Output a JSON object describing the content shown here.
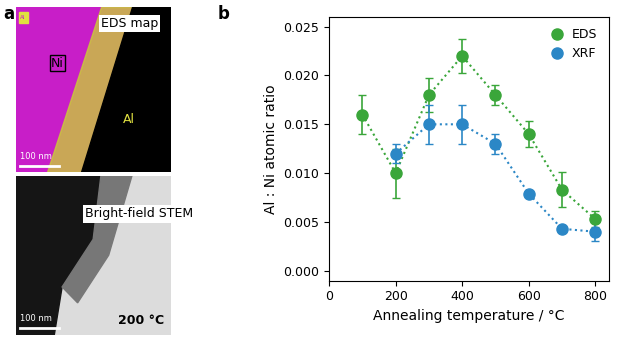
{
  "chart_data": {
    "type": "scatter",
    "x_label": "Annealing temperature / °C",
    "y_label": "Al : Ni atomic ratio",
    "x": [
      100,
      200,
      300,
      400,
      500,
      600,
      700,
      800
    ],
    "series": [
      {
        "name": "EDS",
        "color": "#3aa63a",
        "marker": "o",
        "line_style": "dotted",
        "values": [
          0.016,
          0.01,
          0.018,
          0.022,
          0.018,
          0.014,
          0.0083,
          0.0053
        ],
        "errors": [
          0.002,
          0.0025,
          0.0017,
          0.0017,
          0.001,
          0.0013,
          0.0018,
          0.0008
        ]
      },
      {
        "name": "XRF",
        "color": "#2b87c6",
        "marker": "o",
        "line_style": "dotted",
        "values": [
          null,
          0.012,
          0.015,
          0.015,
          0.013,
          0.0079,
          0.0043,
          0.004
        ],
        "errors": [
          null,
          0.001,
          0.002,
          0.002,
          0.001,
          0.0003,
          0.0003,
          0.001
        ]
      }
    ],
    "xlim": [
      0,
      840
    ],
    "xticks": [
      0,
      200,
      400,
      600,
      800
    ],
    "ylim": [
      -0.001,
      0.026
    ],
    "yticks": [
      {
        "value": 0.0,
        "label": "0.000"
      },
      {
        "value": 0.005,
        "label": "0.005"
      },
      {
        "value": 0.01,
        "label": "0.010"
      },
      {
        "value": 0.015,
        "label": "0.015"
      },
      {
        "value": 0.02,
        "label": "0.020"
      },
      {
        "value": 0.025,
        "label": "0.025"
      }
    ],
    "legend": "upper right",
    "grid": false
  },
  "panel_labels": [
    "a",
    "b"
  ],
  "panel_a": {
    "eds_map": {
      "title": "EDS map",
      "legend": [
        "Al",
        "Ni"
      ],
      "labels": [
        "Ni",
        "Al"
      ],
      "scale_bar": "100 nm"
    },
    "stem": {
      "title": "Bright-field STEM",
      "scale_bar": "100 nm",
      "temperature": "200 °C"
    }
  }
}
